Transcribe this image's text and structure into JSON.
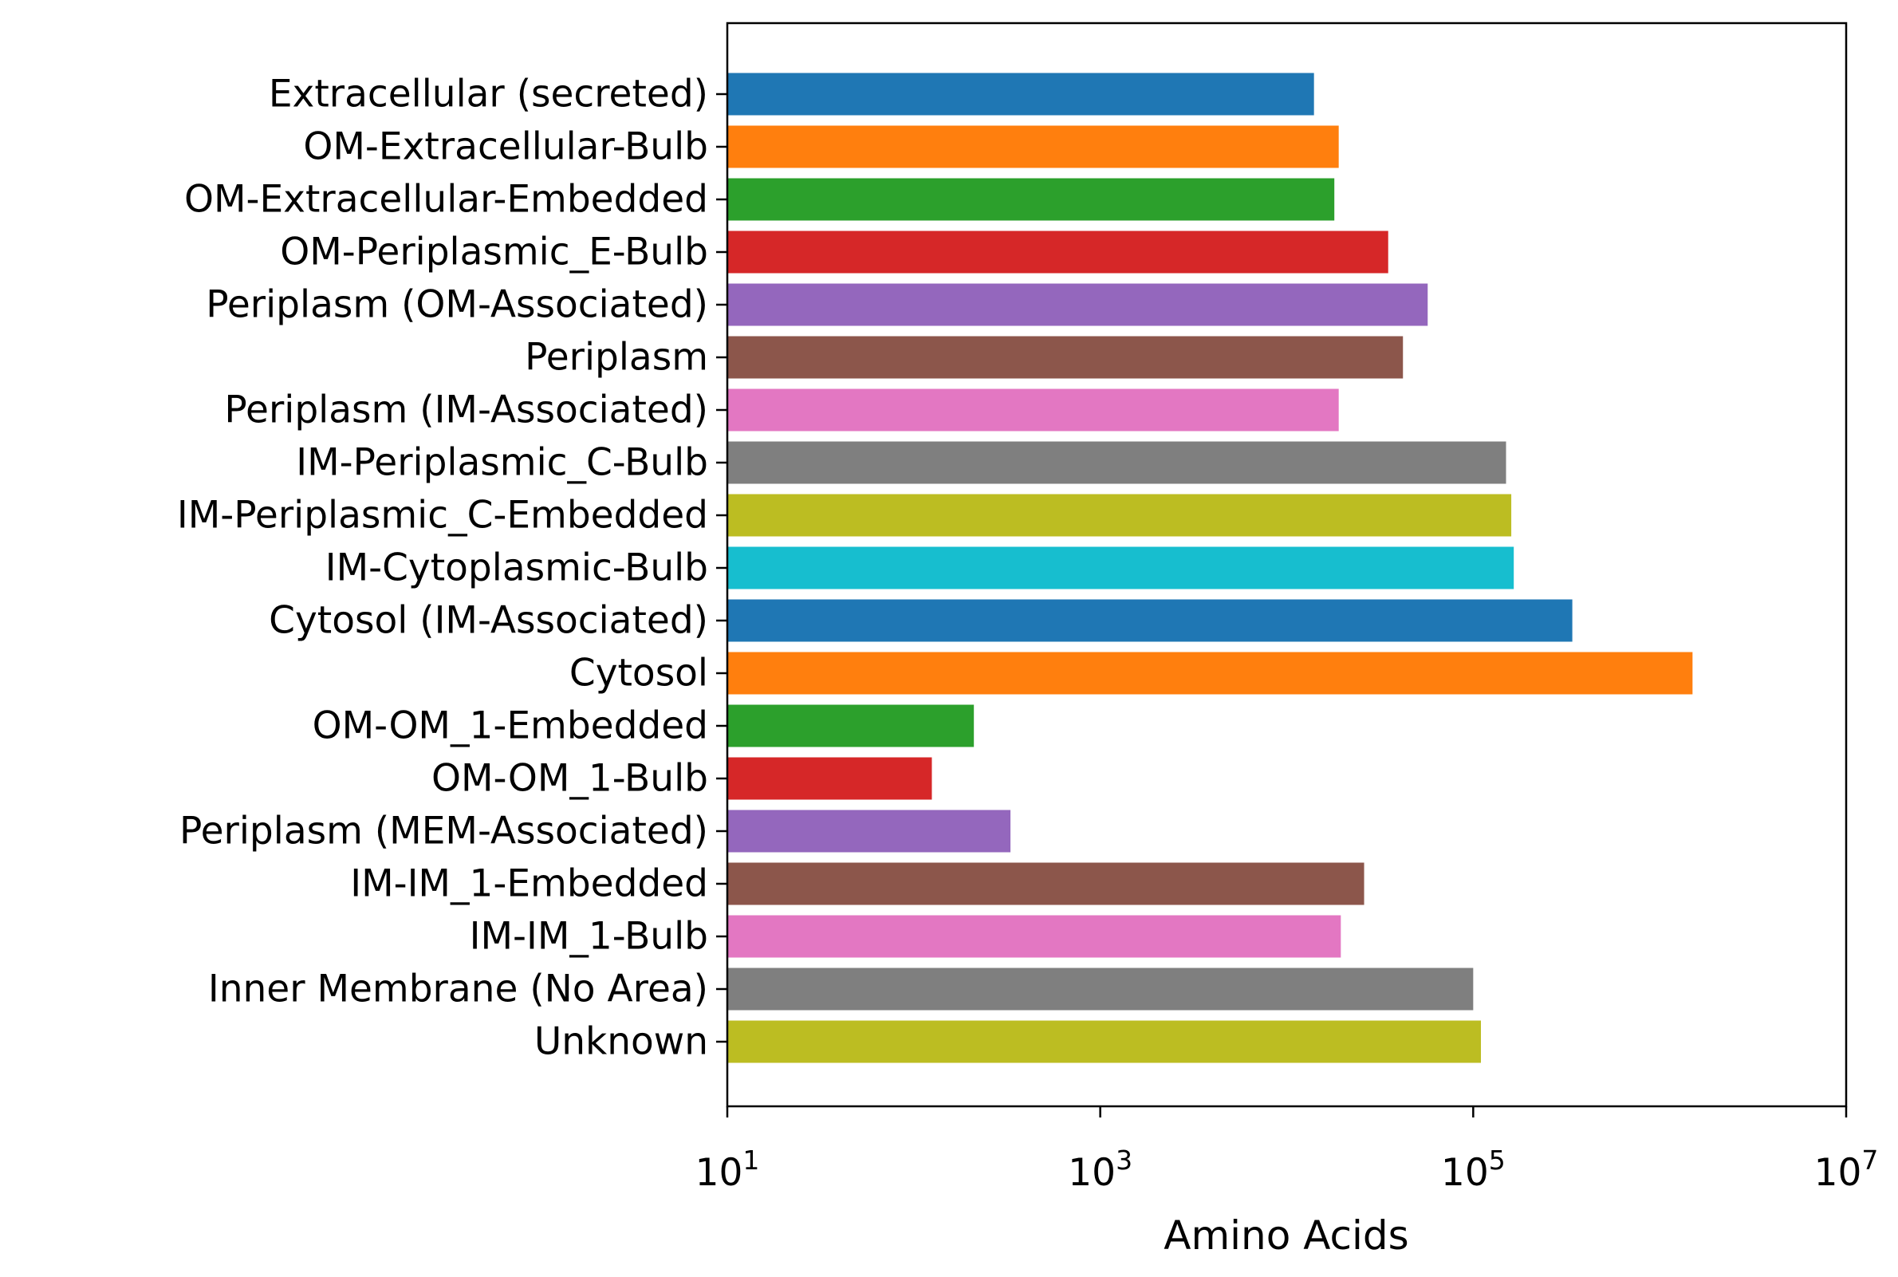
{
  "chart_data": {
    "type": "bar",
    "orientation": "horizontal",
    "xlabel": "Amino Acids",
    "ylabel": "",
    "title": "",
    "xscale": "log",
    "xlim": [
      10,
      10000000
    ],
    "xticks": [
      {
        "value": 10,
        "base": "10",
        "exp": "1"
      },
      {
        "value": 1000,
        "base": "10",
        "exp": "3"
      },
      {
        "value": 100000,
        "base": "10",
        "exp": "5"
      },
      {
        "value": 10000000,
        "base": "10",
        "exp": "7"
      }
    ],
    "grid": false,
    "legend": "none",
    "categories": [
      "Extracellular (secreted)",
      "OM-Extracellular-Bulb",
      "OM-Extracellular-Embedded",
      "OM-Periplasmic_E-Bulb",
      "Periplasm (OM-Associated)",
      "Periplasm",
      "Periplasm (IM-Associated)",
      "IM-Periplasmic_C-Bulb",
      "IM-Periplasmic_C-Embedded",
      "IM-Cytoplasmic-Bulb",
      "Cytosol (IM-Associated)",
      "Cytosol",
      "OM-OM_1-Embedded",
      "OM-OM_1-Bulb",
      "Periplasm (MEM-Associated)",
      "IM-IM_1-Embedded",
      "IM-IM_1-Bulb",
      "Inner Membrane (No Area)",
      "Unknown"
    ],
    "values": [
      14000,
      19000,
      18000,
      35000,
      57000,
      42000,
      19000,
      150000,
      160000,
      165000,
      340000,
      1500000,
      210,
      125,
      330,
      26000,
      19500,
      100000,
      110000
    ],
    "colors": [
      "#1f77b4",
      "#ff7f0e",
      "#2ca02c",
      "#d62728",
      "#9467bd",
      "#8c564b",
      "#e377c2",
      "#7f7f7f",
      "#bcbd22",
      "#17becf",
      "#1f77b4",
      "#ff7f0e",
      "#2ca02c",
      "#d62728",
      "#9467bd",
      "#8c564b",
      "#e377c2",
      "#7f7f7f",
      "#bcbd22"
    ]
  }
}
